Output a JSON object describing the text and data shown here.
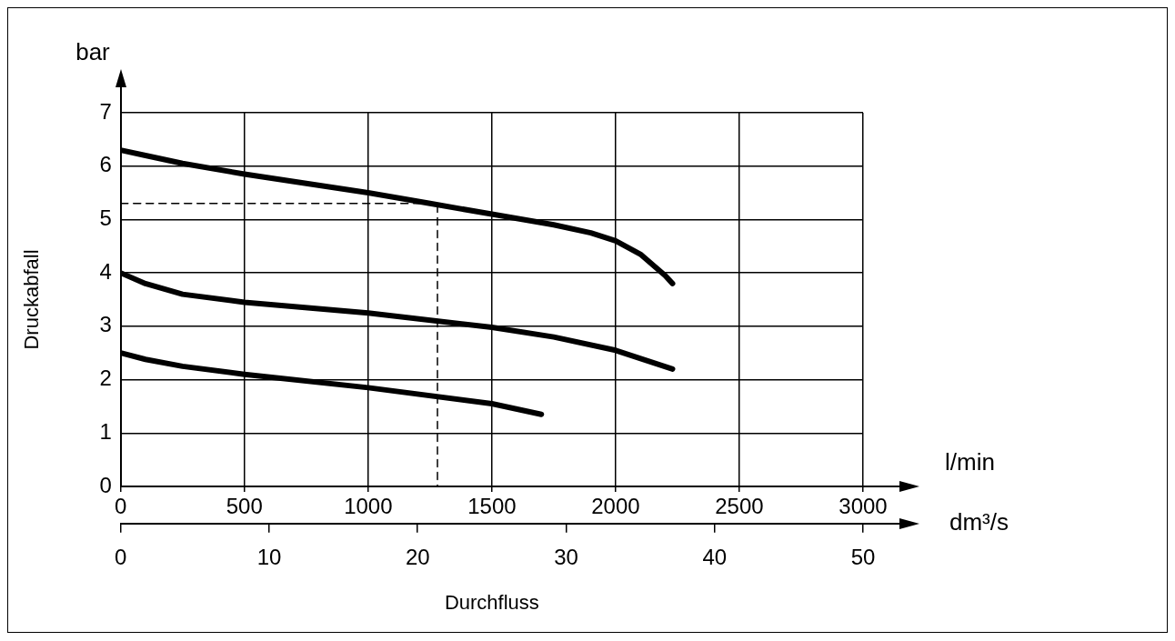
{
  "chart_data": {
    "type": "line",
    "xlabel": "Durchfluss",
    "ylabel": "Druckabfall",
    "annotations": [
      "bar",
      "l/min",
      "dm³/s"
    ],
    "xlim": [
      0,
      3000
    ],
    "xticks": [
      0,
      500,
      1000,
      1500,
      2000,
      2500,
      3000
    ],
    "ylim": [
      0,
      7
    ],
    "yticks": [
      0,
      1,
      2,
      3,
      4,
      5,
      6,
      7
    ],
    "x2lim": [
      0,
      50
    ],
    "x2ticks": [
      0,
      10,
      20,
      30,
      40,
      50
    ],
    "grid": true,
    "legend": false,
    "marker": "none",
    "series": [
      {
        "color": "#000000",
        "line_style": "solid",
        "x": [
          0,
          100,
          250,
          500,
          1000,
          1250,
          1500,
          1750,
          1900,
          2000,
          2100,
          2200,
          2230
        ],
        "values": [
          6.3,
          6.2,
          6.05,
          5.85,
          5.5,
          5.3,
          5.1,
          4.9,
          4.75,
          4.6,
          4.35,
          3.95,
          3.8
        ]
      },
      {
        "color": "#000000",
        "line_style": "solid",
        "x": [
          0,
          100,
          250,
          500,
          1000,
          1500,
          1750,
          2000,
          2230
        ],
        "values": [
          4.0,
          3.8,
          3.6,
          3.45,
          3.25,
          2.98,
          2.8,
          2.55,
          2.2
        ]
      },
      {
        "color": "#000000",
        "line_style": "solid",
        "x": [
          0,
          100,
          250,
          500,
          1000,
          1500,
          1700
        ],
        "values": [
          2.5,
          2.38,
          2.25,
          2.1,
          1.85,
          1.55,
          1.35
        ]
      },
      {
        "color": "#000000",
        "line_style": "dashed",
        "x": [
          0,
          1280,
          1280
        ],
        "values": [
          5.3,
          5.3,
          0
        ]
      }
    ]
  }
}
